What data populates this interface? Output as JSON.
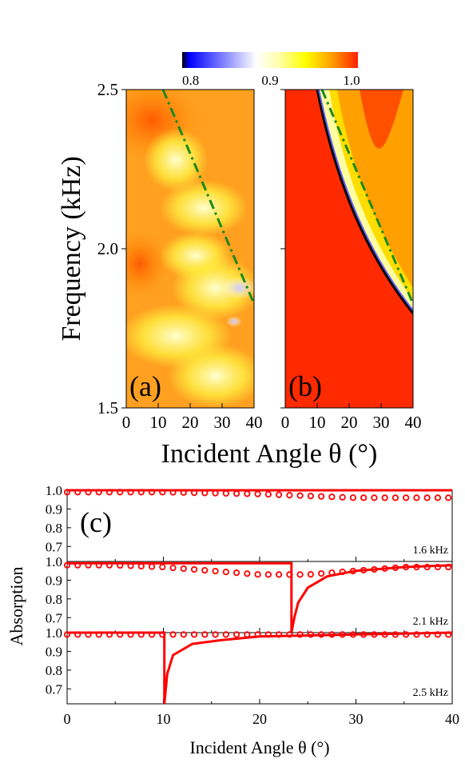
{
  "chart_data": [
    {
      "type": "heatmap",
      "panel_label": "(a)",
      "colorbar": {
        "ticks": [
          "0.8",
          "0.9",
          "1.0"
        ],
        "range": [
          0.8,
          1.0
        ],
        "colors": [
          "#000000",
          "#0000ff",
          "#ffffff",
          "#ffff00",
          "#ff2000"
        ]
      },
      "xlabel": "Incident Angle θ (°)",
      "ylabel": "Frequency (kHz)",
      "xlim": [
        0,
        40
      ],
      "ylim": [
        1.5,
        2.5
      ],
      "xticks": [
        "0",
        "10",
        "20",
        "30",
        "40"
      ],
      "yticks": [
        "1.5",
        "2.0",
        "2.5"
      ],
      "dashed_line": [
        [
          12,
          2.5
        ],
        [
          40,
          1.84
        ]
      ]
    },
    {
      "type": "heatmap",
      "panel_label": "(b)",
      "xlim": [
        0,
        40
      ],
      "ylim": [
        1.5,
        2.5
      ],
      "xticks": [
        "0",
        "10",
        "20",
        "30",
        "40"
      ],
      "dip_curve": [
        [
          10.3,
          2.5
        ],
        [
          15,
          2.22
        ],
        [
          20,
          2.06
        ],
        [
          25,
          1.96
        ],
        [
          30,
          1.89
        ],
        [
          35,
          1.84
        ],
        [
          40,
          1.8
        ]
      ],
      "dashed_line": [
        [
          11.7,
          2.5
        ],
        [
          40,
          1.84
        ]
      ]
    },
    {
      "type": "line",
      "panel_label": "(c)",
      "xlabel": "Incident Angle θ (°)",
      "ylabel": "Absorption",
      "xlim": [
        0,
        40
      ],
      "xticks": [
        "0",
        "10",
        "20",
        "30",
        "40"
      ],
      "yticks": [
        "0.7",
        "0.8",
        "0.9",
        "1.0"
      ],
      "ylim": [
        0.62,
        1.0
      ],
      "color": "#ff0000",
      "subplots": [
        {
          "label": "1.6 kHz",
          "curve": [
            [
              0,
              1.0
            ],
            [
              40,
              1.0
            ]
          ],
          "markers": [
            [
              0,
              0.99
            ],
            [
              5,
              0.99
            ],
            [
              10,
              0.99
            ],
            [
              15,
              0.985
            ],
            [
              20,
              0.98
            ],
            [
              25,
              0.97
            ],
            [
              30,
              0.96
            ],
            [
              35,
              0.96
            ],
            [
              40,
              0.96
            ]
          ]
        },
        {
          "label": "2.1 kHz",
          "curve": [
            [
              0,
              0.99
            ],
            [
              23.3,
              0.99
            ],
            [
              23.3,
              0.62
            ],
            [
              23.6,
              0.7
            ],
            [
              24,
              0.78
            ],
            [
              25,
              0.86
            ],
            [
              27,
              0.92
            ],
            [
              30,
              0.95
            ],
            [
              35,
              0.97
            ],
            [
              40,
              0.98
            ]
          ],
          "markers": [
            [
              0,
              0.98
            ],
            [
              5,
              0.98
            ],
            [
              10,
              0.97
            ],
            [
              15,
              0.95
            ],
            [
              20,
              0.93
            ],
            [
              25,
              0.93
            ],
            [
              30,
              0.95
            ],
            [
              35,
              0.97
            ],
            [
              40,
              0.97
            ]
          ]
        },
        {
          "label": "2.5 kHz",
          "curve": [
            [
              0,
              1.0
            ],
            [
              10.1,
              1.0
            ],
            [
              10.1,
              0.62
            ],
            [
              10.4,
              0.78
            ],
            [
              11,
              0.88
            ],
            [
              13,
              0.94
            ],
            [
              16,
              0.96
            ],
            [
              20,
              0.98
            ],
            [
              30,
              0.99
            ],
            [
              40,
              1.0
            ]
          ],
          "markers": [
            [
              0,
              0.99
            ],
            [
              5,
              0.99
            ],
            [
              10,
              0.99
            ],
            [
              15,
              0.99
            ],
            [
              20,
              0.99
            ],
            [
              25,
              0.99
            ],
            [
              30,
              0.99
            ],
            [
              35,
              0.99
            ],
            [
              40,
              0.99
            ]
          ]
        }
      ]
    }
  ]
}
